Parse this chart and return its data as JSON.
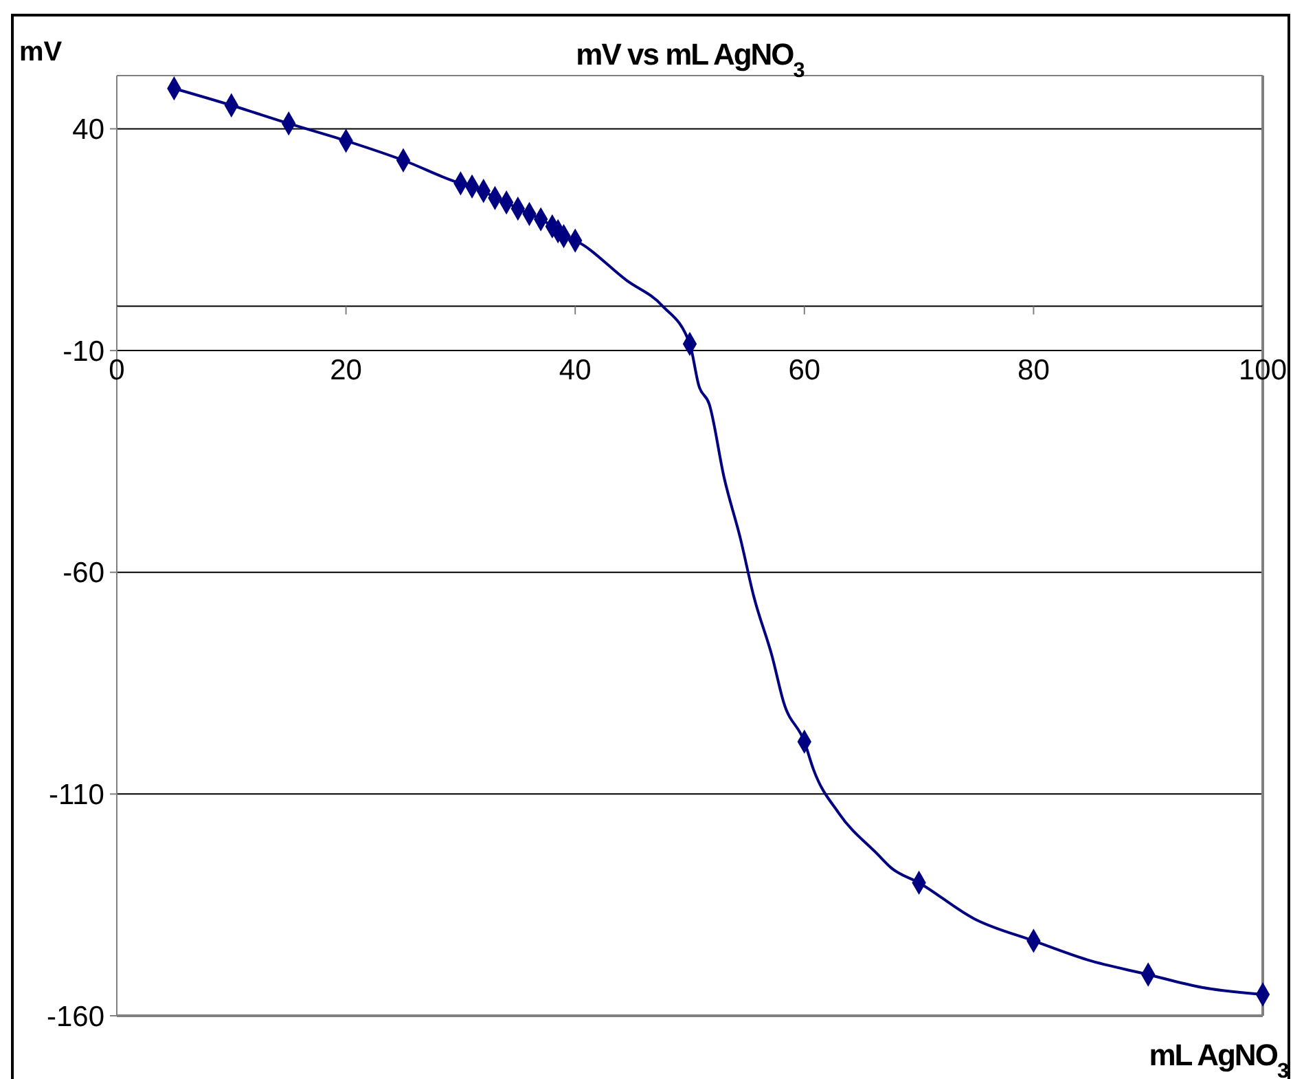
{
  "chart_data": {
    "type": "line",
    "title": "mV vs  mL AgNO$_{3}$",
    "xlabel": "mL AgNO$_{3}$",
    "ylabel": "mV",
    "xlim": [
      0,
      100
    ],
    "xticks": [
      0,
      20,
      40,
      60,
      80,
      100
    ],
    "ylim": [
      -160,
      52
    ],
    "yticks": [
      -160,
      -110,
      -60,
      -10,
      40
    ],
    "grid": "y",
    "series": [
      {
        "marker": "none",
        "color": "#000080",
        "x": [
          5,
          10,
          15,
          20,
          25,
          30,
          31,
          32,
          33,
          34,
          35,
          36,
          37,
          38,
          38.5,
          39,
          40,
          44.5,
          47.6,
          50,
          50.8,
          51.7,
          53,
          54.4,
          55.6,
          57.2,
          58.2,
          60,
          60.8,
          63,
          66.4,
          67.6,
          70,
          74.8,
          80,
          84.7,
          90,
          94.7,
          100
        ],
        "values": [
          49.1,
          45.3,
          41.2,
          37.3,
          32.9,
          27.7,
          27,
          26,
          24.4,
          23.4,
          22,
          20.8,
          19.6,
          18,
          16.9,
          15.8,
          14.8,
          5.8,
          0.1,
          -8.5,
          -18,
          -22.1,
          -38.7,
          -52.2,
          -65.6,
          -79.1,
          -89.4,
          -98.2,
          -104.5,
          -114.3,
          -123.6,
          -126.7,
          -130,
          -138.1,
          -143.1,
          -147.4,
          -150.7,
          -153.6,
          -155.2
        ]
      },
      {
        "type": "scatter",
        "marker": "diamond",
        "color": "#000080",
        "x": [
          5,
          10,
          15,
          20,
          25,
          30,
          31,
          32,
          33,
          34,
          35,
          36,
          37,
          38,
          38.5,
          39,
          40,
          50,
          60,
          70,
          80,
          90,
          100
        ],
        "values": [
          49.1,
          45.3,
          41.2,
          37.3,
          32.9,
          27.7,
          27,
          26,
          24.4,
          23.4,
          22,
          20.8,
          19.6,
          18,
          16.9,
          15.8,
          14.8,
          -8.5,
          -98.2,
          -130,
          -143.1,
          -150.7,
          -155.2
        ]
      }
    ]
  }
}
